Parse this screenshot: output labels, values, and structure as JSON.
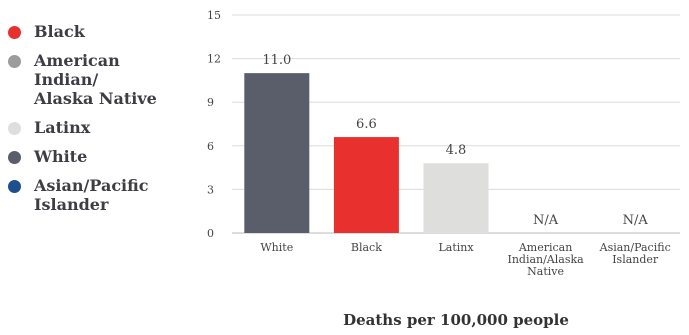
{
  "legend": [
    {
      "label": "Black",
      "color": "#e8302e"
    },
    {
      "label": "American Indian/ Alaska Native",
      "color": "#9a9d9c"
    },
    {
      "label": "Latinx",
      "color": "#dededc"
    },
    {
      "label": "White",
      "color": "#5a5e6b"
    },
    {
      "label": "Asian/Pacific Islander",
      "color": "#1c4f8c"
    }
  ],
  "chart_data": {
    "type": "bar",
    "categories": [
      "White",
      "Black",
      "Latinx",
      "American Indian/Alaska Native",
      "Asian/Pacific Islander"
    ],
    "category_lines": [
      [
        "White"
      ],
      [
        "Black"
      ],
      [
        "Latinx"
      ],
      [
        "American",
        "Indian/Alaska",
        "Native"
      ],
      [
        "Asian/Pacific",
        "Islander"
      ]
    ],
    "values": [
      11.0,
      6.6,
      4.8,
      null,
      null
    ],
    "data_labels": [
      "11.0",
      "6.6",
      "4.8",
      "N/A",
      "N/A"
    ],
    "colors": [
      "#5a5e6b",
      "#e8302e",
      "#dededc",
      "#9a9d9c",
      "#1c4f8c"
    ],
    "yticks": [
      0,
      3,
      6,
      9,
      12,
      15
    ],
    "ylim": [
      0,
      15
    ],
    "xlabel": "Deaths per 100,000 people",
    "ylabel": "",
    "title": "",
    "grid": true,
    "legend_position": "left"
  }
}
